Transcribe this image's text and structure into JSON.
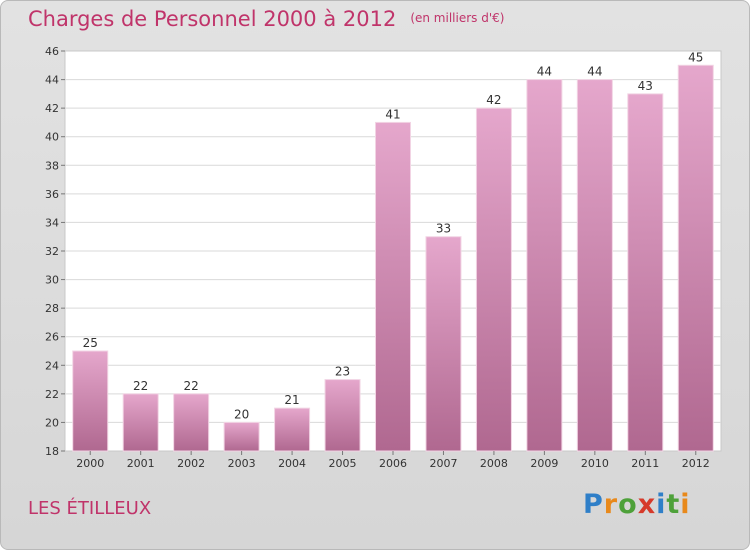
{
  "title": "Charges de Personnel 2000 à 2012",
  "subtitle": "(en milliers d'€)",
  "place": "LES ÉTILLEUX",
  "logo": {
    "letters": [
      "P",
      "r",
      "o",
      "x",
      "i",
      "t",
      "i"
    ],
    "colors": [
      "#2f7fc8",
      "#e8891b",
      "#4ea13a",
      "#d63a2a",
      "#2f7fc8",
      "#4ea13a",
      "#e8891b"
    ]
  },
  "colors": {
    "title": "#c0346a",
    "bar_top": "#e5a7cc",
    "bar_bottom": "#b06890"
  },
  "chart_data": {
    "type": "bar",
    "title": "Charges de Personnel 2000 à 2012",
    "subtitle": "(en milliers d'€)",
    "categories": [
      "2000",
      "2001",
      "2002",
      "2003",
      "2004",
      "2005",
      "2006",
      "2007",
      "2008",
      "2009",
      "2010",
      "2011",
      "2012"
    ],
    "values": [
      25,
      22,
      22,
      20,
      21,
      23,
      41,
      33,
      42,
      44,
      44,
      43,
      45
    ],
    "ylim": [
      18,
      46
    ],
    "yticks": [
      18,
      20,
      22,
      24,
      26,
      28,
      30,
      32,
      34,
      36,
      38,
      40,
      42,
      44,
      46
    ],
    "grid": true,
    "data_labels": true
  }
}
